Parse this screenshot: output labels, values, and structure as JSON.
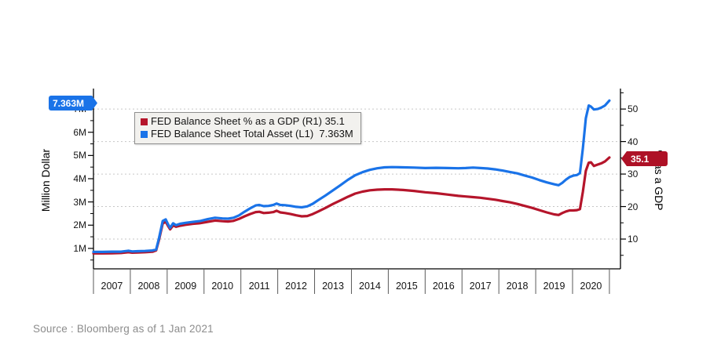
{
  "colors": {
    "red": "#b5152b",
    "blue": "#1a73e8",
    "grid": "#c6c6c6",
    "axis": "#000000",
    "x_tick": "#5a5a5a",
    "legend_bg": "#f2f1ee",
    "legend_border": "#8f8f8f",
    "source_text": "#8c8c8c"
  },
  "legend": {
    "items": [
      {
        "text": "FED Balance Sheet % as a GDP (R1) 35.1",
        "color": "#b5152b"
      },
      {
        "text": "FED Balance Sheet Total Asset (L1)  7.363M",
        "color": "#1a73e8"
      }
    ]
  },
  "annotations": {
    "left_tag": {
      "text": "7.363M",
      "value": 7.363,
      "axis": "left",
      "color": "#1a73e8"
    },
    "right_tag": {
      "text": "35.1",
      "value": 35.1,
      "axis": "right",
      "color": "#ae1126"
    }
  },
  "footer": {
    "source": "Source : Bloomberg as of 1 Jan 2021"
  },
  "chart_data": {
    "type": "line",
    "title": "",
    "grid": "horizontal-dashed-at-right-axis-ticks",
    "legend_position": "top-left-inside",
    "x_axis": {
      "years": [
        "2007",
        "2008",
        "2009",
        "2010",
        "2011",
        "2012",
        "2013",
        "2014",
        "2015",
        "2016",
        "2017",
        "2018",
        "2019",
        "2020"
      ],
      "min": 2007.0,
      "max": 2021.3
    },
    "left_axis": {
      "title": "Million Dollar",
      "tick_labels": [
        "1M",
        "2M",
        "3M",
        "4M",
        "5M",
        "6M",
        "7M"
      ],
      "tick_values": [
        1,
        2,
        3,
        4,
        5,
        6,
        7
      ],
      "minor_values": [
        0.5,
        1.5,
        2.5,
        3.5,
        4.5,
        5.5,
        6.5,
        7.5
      ],
      "min": 0.12,
      "max": 7.88
    },
    "right_axis": {
      "title": "% as a GDP",
      "tick_labels": [
        "10",
        "20",
        "30",
        "40",
        "50"
      ],
      "tick_values": [
        10,
        20,
        30,
        40,
        50
      ],
      "minor_values": [
        5,
        15,
        25,
        35,
        45,
        55
      ],
      "grid_values": [
        10,
        20,
        30,
        40,
        50
      ],
      "min": 0.84,
      "max": 56.3
    },
    "series": [
      {
        "name": "FED Balance Sheet % as a GDP (R1)",
        "axis": "right",
        "color": "#b5152b",
        "last_value": 35.1,
        "points": [
          [
            2007.0,
            5.6
          ],
          [
            2007.25,
            5.6
          ],
          [
            2007.5,
            5.65
          ],
          [
            2007.75,
            5.7
          ],
          [
            2007.95,
            5.95
          ],
          [
            2008.05,
            5.8
          ],
          [
            2008.2,
            5.85
          ],
          [
            2008.4,
            5.95
          ],
          [
            2008.6,
            6.1
          ],
          [
            2008.7,
            6.5
          ],
          [
            2008.78,
            9.8
          ],
          [
            2008.88,
            14.8
          ],
          [
            2008.96,
            15.3
          ],
          [
            2009.02,
            14.1
          ],
          [
            2009.08,
            13.0
          ],
          [
            2009.16,
            14.2
          ],
          [
            2009.24,
            13.8
          ],
          [
            2009.35,
            14.1
          ],
          [
            2009.5,
            14.4
          ],
          [
            2009.7,
            14.7
          ],
          [
            2009.9,
            14.9
          ],
          [
            2010.1,
            15.3
          ],
          [
            2010.3,
            15.7
          ],
          [
            2010.5,
            15.5
          ],
          [
            2010.65,
            15.4
          ],
          [
            2010.8,
            15.6
          ],
          [
            2010.95,
            16.2
          ],
          [
            2011.1,
            17.0
          ],
          [
            2011.25,
            17.7
          ],
          [
            2011.4,
            18.3
          ],
          [
            2011.5,
            18.4
          ],
          [
            2011.62,
            18.0
          ],
          [
            2011.75,
            18.1
          ],
          [
            2011.88,
            18.3
          ],
          [
            2011.97,
            18.7
          ],
          [
            2012.07,
            18.2
          ],
          [
            2012.2,
            18.0
          ],
          [
            2012.35,
            17.7
          ],
          [
            2012.5,
            17.3
          ],
          [
            2012.65,
            17.0
          ],
          [
            2012.8,
            17.1
          ],
          [
            2012.95,
            17.7
          ],
          [
            2013.1,
            18.5
          ],
          [
            2013.3,
            19.6
          ],
          [
            2013.5,
            20.8
          ],
          [
            2013.7,
            21.9
          ],
          [
            2013.9,
            23.0
          ],
          [
            2014.1,
            24.0
          ],
          [
            2014.3,
            24.6
          ],
          [
            2014.5,
            25.0
          ],
          [
            2014.7,
            25.2
          ],
          [
            2014.9,
            25.3
          ],
          [
            2015.1,
            25.3
          ],
          [
            2015.4,
            25.1
          ],
          [
            2015.7,
            24.8
          ],
          [
            2016.0,
            24.4
          ],
          [
            2016.3,
            24.1
          ],
          [
            2016.6,
            23.7
          ],
          [
            2016.9,
            23.3
          ],
          [
            2017.1,
            23.1
          ],
          [
            2017.3,
            22.9
          ],
          [
            2017.5,
            22.7
          ],
          [
            2017.7,
            22.4
          ],
          [
            2017.9,
            22.1
          ],
          [
            2018.1,
            21.7
          ],
          [
            2018.3,
            21.3
          ],
          [
            2018.5,
            20.8
          ],
          [
            2018.7,
            20.2
          ],
          [
            2018.9,
            19.6
          ],
          [
            2019.1,
            18.9
          ],
          [
            2019.3,
            18.2
          ],
          [
            2019.5,
            17.6
          ],
          [
            2019.62,
            17.4
          ],
          [
            2019.72,
            18.0
          ],
          [
            2019.82,
            18.5
          ],
          [
            2019.92,
            18.8
          ],
          [
            2020.02,
            18.8
          ],
          [
            2020.12,
            18.9
          ],
          [
            2020.2,
            19.2
          ],
          [
            2020.28,
            24.5
          ],
          [
            2020.36,
            31.0
          ],
          [
            2020.44,
            33.5
          ],
          [
            2020.5,
            33.6
          ],
          [
            2020.58,
            32.5
          ],
          [
            2020.68,
            32.9
          ],
          [
            2020.78,
            33.3
          ],
          [
            2020.88,
            33.9
          ],
          [
            2021.0,
            35.1
          ]
        ]
      },
      {
        "name": "FED Balance Sheet Total Asset (L1)",
        "axis": "left",
        "color": "#1a73e8",
        "last_value": 7.363,
        "points": [
          [
            2007.0,
            0.85
          ],
          [
            2007.25,
            0.85
          ],
          [
            2007.5,
            0.86
          ],
          [
            2007.75,
            0.86
          ],
          [
            2007.95,
            0.9
          ],
          [
            2008.05,
            0.87
          ],
          [
            2008.2,
            0.88
          ],
          [
            2008.4,
            0.89
          ],
          [
            2008.6,
            0.91
          ],
          [
            2008.7,
            0.95
          ],
          [
            2008.78,
            1.45
          ],
          [
            2008.88,
            2.18
          ],
          [
            2008.96,
            2.25
          ],
          [
            2009.02,
            2.05
          ],
          [
            2009.08,
            1.88
          ],
          [
            2009.16,
            2.08
          ],
          [
            2009.24,
            2.0
          ],
          [
            2009.35,
            2.06
          ],
          [
            2009.5,
            2.1
          ],
          [
            2009.7,
            2.14
          ],
          [
            2009.9,
            2.18
          ],
          [
            2010.1,
            2.26
          ],
          [
            2010.3,
            2.32
          ],
          [
            2010.5,
            2.29
          ],
          [
            2010.65,
            2.28
          ],
          [
            2010.8,
            2.32
          ],
          [
            2010.95,
            2.42
          ],
          [
            2011.1,
            2.58
          ],
          [
            2011.25,
            2.72
          ],
          [
            2011.4,
            2.85
          ],
          [
            2011.5,
            2.87
          ],
          [
            2011.62,
            2.82
          ],
          [
            2011.75,
            2.83
          ],
          [
            2011.88,
            2.87
          ],
          [
            2011.97,
            2.93
          ],
          [
            2012.07,
            2.87
          ],
          [
            2012.2,
            2.86
          ],
          [
            2012.35,
            2.83
          ],
          [
            2012.5,
            2.79
          ],
          [
            2012.65,
            2.77
          ],
          [
            2012.8,
            2.81
          ],
          [
            2012.95,
            2.92
          ],
          [
            2013.1,
            3.08
          ],
          [
            2013.3,
            3.28
          ],
          [
            2013.5,
            3.5
          ],
          [
            2013.7,
            3.72
          ],
          [
            2013.9,
            3.95
          ],
          [
            2014.1,
            4.15
          ],
          [
            2014.3,
            4.28
          ],
          [
            2014.5,
            4.38
          ],
          [
            2014.7,
            4.45
          ],
          [
            2014.9,
            4.49
          ],
          [
            2015.1,
            4.5
          ],
          [
            2015.4,
            4.49
          ],
          [
            2015.7,
            4.48
          ],
          [
            2016.0,
            4.46
          ],
          [
            2016.3,
            4.47
          ],
          [
            2016.6,
            4.46
          ],
          [
            2016.9,
            4.45
          ],
          [
            2017.1,
            4.46
          ],
          [
            2017.3,
            4.48
          ],
          [
            2017.5,
            4.46
          ],
          [
            2017.7,
            4.44
          ],
          [
            2017.9,
            4.4
          ],
          [
            2018.1,
            4.35
          ],
          [
            2018.3,
            4.29
          ],
          [
            2018.5,
            4.23
          ],
          [
            2018.7,
            4.14
          ],
          [
            2018.9,
            4.05
          ],
          [
            2019.1,
            3.94
          ],
          [
            2019.3,
            3.84
          ],
          [
            2019.5,
            3.76
          ],
          [
            2019.62,
            3.72
          ],
          [
            2019.72,
            3.82
          ],
          [
            2019.82,
            3.96
          ],
          [
            2019.92,
            4.07
          ],
          [
            2020.02,
            4.13
          ],
          [
            2020.12,
            4.16
          ],
          [
            2020.2,
            4.24
          ],
          [
            2020.28,
            5.3
          ],
          [
            2020.36,
            6.6
          ],
          [
            2020.44,
            7.15
          ],
          [
            2020.5,
            7.1
          ],
          [
            2020.58,
            6.98
          ],
          [
            2020.68,
            7.0
          ],
          [
            2020.78,
            7.06
          ],
          [
            2020.88,
            7.15
          ],
          [
            2021.0,
            7.363
          ]
        ]
      }
    ]
  }
}
